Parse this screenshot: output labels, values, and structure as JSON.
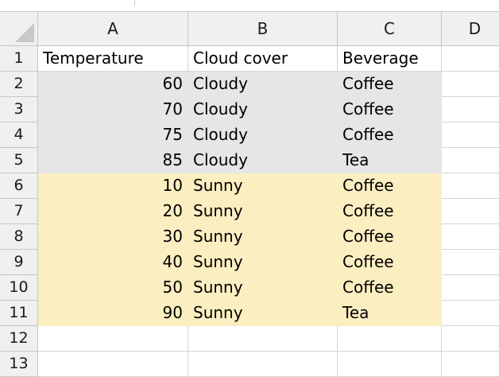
{
  "spreadsheet": {
    "columns": [
      "A",
      "B",
      "C",
      "D"
    ],
    "rows": [
      {
        "num": "1",
        "cells": [
          "Temperature",
          "Cloud cover",
          "Beverage"
        ],
        "fill": ""
      },
      {
        "num": "2",
        "cells": [
          "60",
          "Cloudy",
          "Coffee"
        ],
        "fill": "gray"
      },
      {
        "num": "3",
        "cells": [
          "70",
          "Cloudy",
          "Coffee"
        ],
        "fill": "gray"
      },
      {
        "num": "4",
        "cells": [
          "75",
          "Cloudy",
          "Coffee"
        ],
        "fill": "gray"
      },
      {
        "num": "5",
        "cells": [
          "85",
          "Cloudy",
          "Tea"
        ],
        "fill": "gray"
      },
      {
        "num": "6",
        "cells": [
          "10",
          "Sunny",
          "Coffee"
        ],
        "fill": "yellow"
      },
      {
        "num": "7",
        "cells": [
          "20",
          "Sunny",
          "Coffee"
        ],
        "fill": "yellow"
      },
      {
        "num": "8",
        "cells": [
          "30",
          "Sunny",
          "Coffee"
        ],
        "fill": "yellow"
      },
      {
        "num": "9",
        "cells": [
          "40",
          "Sunny",
          "Coffee"
        ],
        "fill": "yellow"
      },
      {
        "num": "10",
        "cells": [
          "50",
          "Sunny",
          "Coffee"
        ],
        "fill": "yellow"
      },
      {
        "num": "11",
        "cells": [
          "90",
          "Sunny",
          "Tea"
        ],
        "fill": "yellow"
      },
      {
        "num": "12",
        "cells": [
          "",
          "",
          ""
        ],
        "fill": ""
      },
      {
        "num": "13",
        "cells": [
          "",
          "",
          ""
        ],
        "fill": ""
      }
    ],
    "colors": {
      "gray_fill": "#e6e6e6",
      "yellow_fill": "#fbeec1",
      "header_bg": "#f0f0f0"
    }
  }
}
